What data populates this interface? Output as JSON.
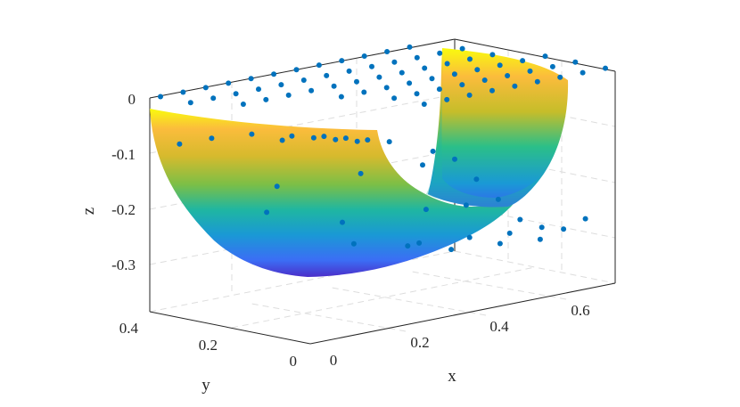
{
  "chart_data": {
    "type": "surface",
    "xlabel": "x",
    "ylabel": "y",
    "zlabel": "z",
    "x_ticks": [
      "0",
      "0.2",
      "0.4",
      "0.6"
    ],
    "y_ticks": [
      "0",
      "0.2",
      "0.4"
    ],
    "z_ticks": [
      "0",
      "-0.1",
      "-0.2",
      "-0.3"
    ],
    "xlim": [
      0,
      0.7
    ],
    "ylim": [
      0,
      0.4
    ],
    "zlim": [
      -0.35,
      0
    ],
    "grid": true,
    "colormap": "parula",
    "surface": {
      "description_values": "quarter-ring bowl z over (x,y), annular region between radius 0.25 and 0.7",
      "r_inner": 0.25,
      "r_outer": 0.7,
      "z_min": -0.32,
      "z_max": 0
    },
    "scatter": {
      "marker_color": "#0072bd",
      "points": [
        [
          0.05,
          0.02,
          -0.02
        ],
        [
          0.1,
          0.02,
          -0.03
        ],
        [
          0.15,
          0.02,
          -0.04
        ],
        [
          0.2,
          0.02,
          -0.05
        ],
        [
          0.3,
          0.02,
          -0.08
        ],
        [
          0.35,
          0.02,
          -0.1
        ],
        [
          0.4,
          0.02,
          -0.14
        ],
        [
          0.45,
          0.02,
          -0.18
        ],
        [
          0.5,
          0.02,
          -0.22
        ],
        [
          0.55,
          0.02,
          -0.24
        ],
        [
          0.6,
          0.02,
          -0.25
        ],
        [
          0.65,
          0.02,
          -0.24
        ],
        [
          0.05,
          0.1,
          -0.03
        ],
        [
          0.1,
          0.1,
          -0.04
        ],
        [
          0.15,
          0.1,
          -0.05
        ],
        [
          0.2,
          0.1,
          -0.06
        ],
        [
          0.35,
          0.1,
          -0.12
        ],
        [
          0.45,
          0.1,
          -0.2
        ],
        [
          0.55,
          0.1,
          -0.26
        ],
        [
          0.62,
          0.1,
          -0.28
        ],
        [
          0.05,
          0.2,
          -0.04
        ],
        [
          0.12,
          0.2,
          -0.06
        ],
        [
          0.3,
          0.2,
          -0.14
        ],
        [
          0.45,
          0.2,
          -0.22
        ],
        [
          0.55,
          0.2,
          -0.28
        ],
        [
          0.62,
          0.2,
          -0.3
        ],
        [
          0.05,
          0.3,
          -0.06
        ],
        [
          0.2,
          0.3,
          -0.16
        ],
        [
          0.35,
          0.3,
          -0.24
        ],
        [
          0.5,
          0.3,
          -0.3
        ],
        [
          0.6,
          0.3,
          -0.32
        ],
        [
          0.05,
          0.38,
          -0.08
        ],
        [
          0.25,
          0.38,
          -0.22
        ],
        [
          0.45,
          0.38,
          -0.3
        ],
        [
          0.6,
          0.38,
          -0.32
        ]
      ]
    }
  }
}
